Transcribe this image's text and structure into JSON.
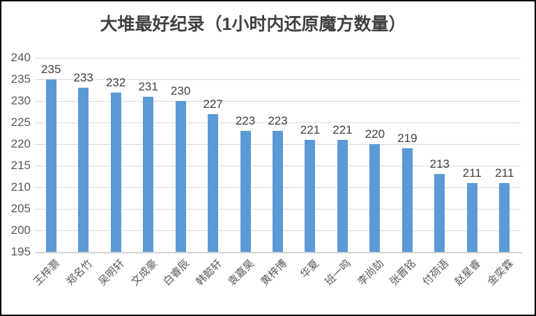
{
  "page": {
    "background": "#FFFFFF",
    "border_color": "#000000"
  },
  "chart_data": {
    "type": "bar",
    "title": "大堆最好纪录（1小时内还原魔方数量）",
    "categories": [
      "王梓灏",
      "郑名竹",
      "吴明轩",
      "文成豪",
      "白睿辰",
      "韩懿轩",
      "袁嘉昊",
      "黄梓博",
      "华夏",
      "班一鸣",
      "李尚劼",
      "张晋铭",
      "付荷语",
      "赵星睿",
      "金奕霖"
    ],
    "values": [
      235,
      233,
      232,
      231,
      230,
      227,
      223,
      223,
      221,
      221,
      220,
      219,
      213,
      211,
      211
    ],
    "xlabel": "",
    "ylabel": "",
    "ylim": [
      195,
      240
    ],
    "ytick_step": 5,
    "yticks": [
      195,
      200,
      205,
      210,
      215,
      220,
      225,
      230,
      235,
      240
    ],
    "grid": true,
    "legend": false,
    "data_labels": true,
    "bar_color": "#5B9BD5",
    "gridline_color": "#D9D9D9",
    "axis_line_color": "#D4D4D4",
    "tick_label_color": "#595959",
    "data_label_color": "#404040",
    "title_color": "#404040"
  }
}
